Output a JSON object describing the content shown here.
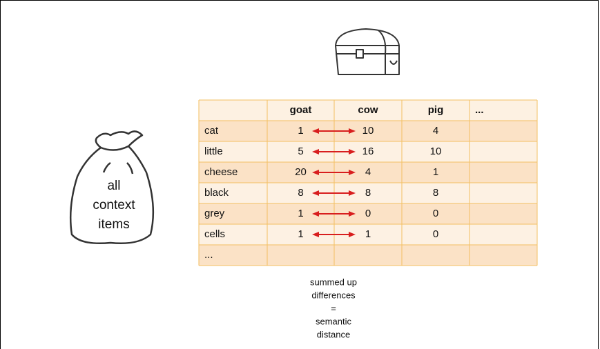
{
  "bag": {
    "lines": [
      "all",
      "context",
      "items"
    ]
  },
  "table": {
    "header": [
      "goat",
      "cow",
      "pig",
      "..."
    ],
    "rows": [
      [
        "cat",
        1,
        10,
        4
      ],
      [
        "little",
        5,
        16,
        10
      ],
      [
        "cheese",
        20,
        4,
        1
      ],
      [
        "black",
        8,
        8,
        8
      ],
      [
        "grey",
        1,
        0,
        0
      ],
      [
        "cells",
        1,
        1,
        0
      ],
      [
        "..."
      ]
    ]
  },
  "caption": [
    "summed up",
    "differences",
    "=",
    "semantic",
    "distance"
  ]
}
